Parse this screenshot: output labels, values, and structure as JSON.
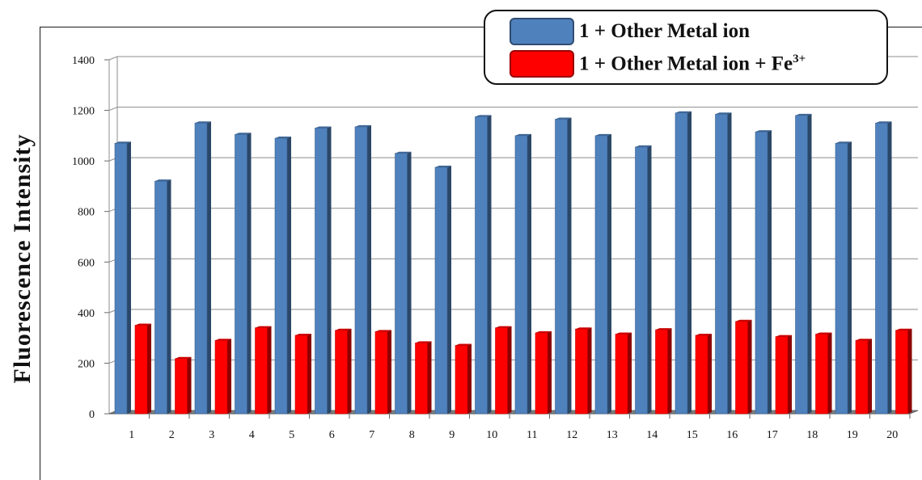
{
  "chart_data": {
    "type": "bar",
    "ylabel": "Fluorescence  Intensity",
    "xlabel": "",
    "ylim": [
      0,
      1400
    ],
    "yticks": [
      0,
      200,
      400,
      600,
      800,
      1000,
      1200,
      1400
    ],
    "categories": [
      "1",
      "2",
      "3",
      "4",
      "5",
      "6",
      "7",
      "8",
      "9",
      "10",
      "11",
      "12",
      "13",
      "14",
      "15",
      "16",
      "17",
      "18",
      "19",
      "20"
    ],
    "series": [
      {
        "name": "1 + Other Metal ion",
        "color": "#4f81bd",
        "values": [
          1070,
          920,
          1150,
          1105,
          1090,
          1130,
          1135,
          1030,
          975,
          1175,
          1100,
          1165,
          1100,
          1055,
          1190,
          1185,
          1115,
          1180,
          1070,
          1150
        ]
      },
      {
        "name": "1 + Other Metal ion + Fe",
        "name_sup": "3+",
        "color": "#ff0000",
        "values": [
          350,
          218,
          290,
          340,
          310,
          330,
          325,
          280,
          270,
          340,
          320,
          335,
          315,
          332,
          310,
          365,
          305,
          315,
          290,
          330
        ]
      }
    ],
    "grid": true,
    "legend_position": "top-right"
  }
}
